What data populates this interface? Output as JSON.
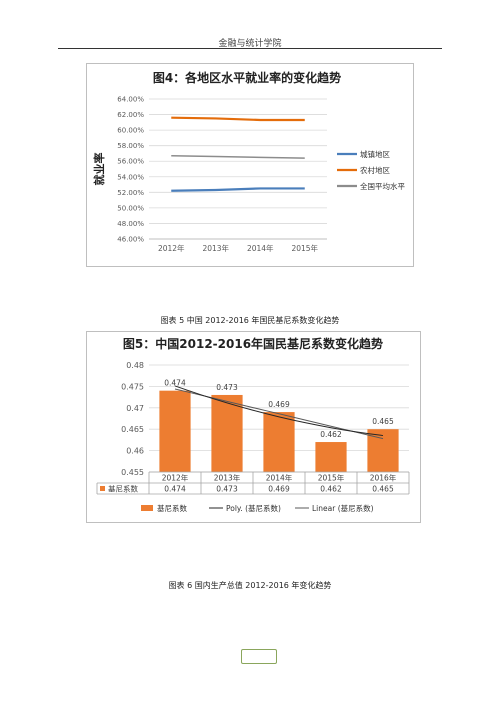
{
  "header": {
    "title": "金融与统计学院"
  },
  "figure1": {
    "caption": "",
    "chart_data": {
      "type": "line",
      "title": "图4：各地区水平就业率的变化趋势",
      "ylabel": "就业率",
      "xlabel": "",
      "categories": [
        "2012年",
        "2013年",
        "2014年",
        "2015年"
      ],
      "yticks": [
        "46.00%",
        "48.00%",
        "50.00%",
        "52.00%",
        "54.00%",
        "56.00%",
        "58.00%",
        "60.00%",
        "62.00%",
        "64.00%"
      ],
      "ylim": [
        46,
        64
      ],
      "grid": true,
      "legend_position": "right",
      "series": [
        {
          "name": "城镇地区",
          "color": "#4a7ebb",
          "values": [
            52.2,
            52.3,
            52.5,
            52.5
          ]
        },
        {
          "name": "农村地区",
          "color": "#e46c0a",
          "values": [
            61.6,
            61.5,
            61.3,
            61.3
          ]
        },
        {
          "name": "全国平均水平",
          "color": "#8c8c8c",
          "values": [
            56.7,
            56.6,
            56.5,
            56.4
          ]
        }
      ]
    }
  },
  "figure2": {
    "caption": "图表 5 中国 2012-2016 年国民基尼系数变化趋势",
    "chart_data": {
      "type": "bar",
      "title": "图5：中国2012-2016年国民基尼系数变化趋势",
      "categories": [
        "2012年",
        "2013年",
        "2014年",
        "2015年",
        "2016年"
      ],
      "ylim": [
        0.455,
        0.48
      ],
      "yticks": [
        "0.455",
        "0.46",
        "0.465",
        "0.47",
        "0.475",
        "0.48"
      ],
      "grid": true,
      "legend_position": "bottom",
      "series": [
        {
          "name": "基尼系数",
          "color": "#ed7d31",
          "values": [
            0.474,
            0.473,
            0.469,
            0.462,
            0.465
          ],
          "value_labels": [
            "0.474",
            "0.473",
            "0.469",
            "0.462",
            "0.465"
          ]
        }
      ],
      "trendlines": [
        {
          "name": "Poly. (基尼系数)",
          "color": "#262626"
        },
        {
          "name": "Linear (基尼系数)",
          "color": "#595959"
        }
      ],
      "table_row_label": "基尼系数"
    }
  },
  "figure3": {
    "caption": "图表 6 国内生产总值 2012-2016 年变化趋势"
  },
  "colors": {
    "orange": "#ed7d31",
    "blue": "#4a7ebb",
    "gray": "#8c8c8c",
    "page_number_border": "#8aa65c"
  }
}
